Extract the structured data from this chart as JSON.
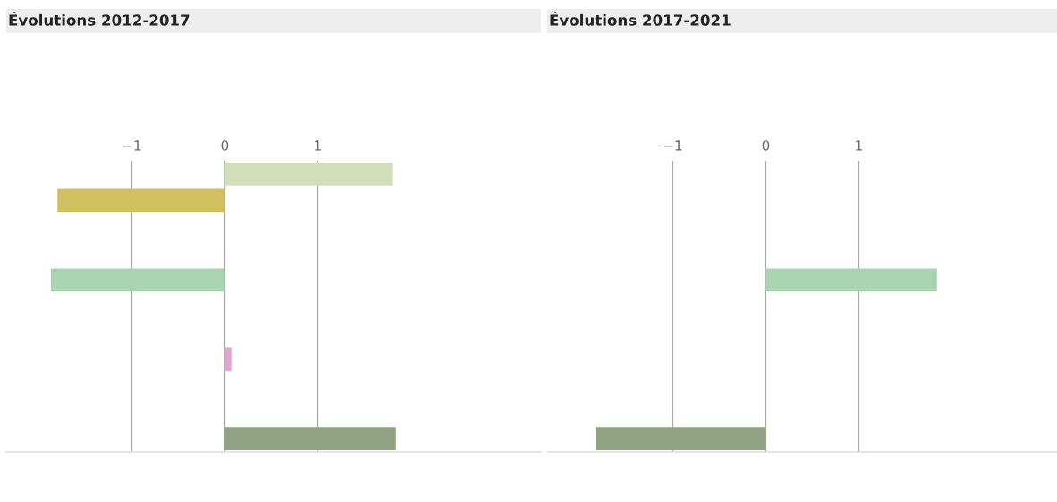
{
  "chart_data": [
    {
      "type": "bar",
      "orientation": "horizontal",
      "title": "Évolutions 2012-2017",
      "categories": [
        null,
        null,
        null,
        null,
        null,
        null,
        null,
        null,
        null,
        null,
        null
      ],
      "values": [
        1.8,
        -1.8,
        0,
        0,
        -1.87,
        0,
        0,
        0.07,
        0,
        0,
        1.84
      ],
      "colors": [
        "#d3dfbb",
        "#cfc25e",
        "#cccccc",
        "#cccccc",
        "#a8d5b0",
        "#cccccc",
        "#f0c8c0",
        "#e0a6d0",
        "#c0d8e8",
        "#cccccc",
        "#91a282"
      ],
      "xlim": [
        -2.35,
        3.4
      ],
      "xticks": [
        {
          "value": -1,
          "label": "−1"
        },
        0,
        1
      ],
      "grid": "x",
      "tick_labels": "x"
    },
    {
      "type": "bar",
      "orientation": "horizontal",
      "title": "Évolutions 2017-2021",
      "categories": [
        null,
        null,
        null,
        null,
        null,
        null,
        null,
        null,
        null,
        null,
        null
      ],
      "values": [
        0,
        0,
        0,
        0,
        1.84,
        0,
        0,
        0,
        0,
        0,
        -1.83
      ],
      "colors": [
        "#d3dfbb",
        "#e8dcb0",
        "#cccccc",
        "#cccccc",
        "#a8d5b0",
        "#cccccc",
        "#f0c8c0",
        "#e0a6d0",
        "#c0d8e8",
        "#cccccc",
        "#91a282"
      ],
      "xlim": [
        -2.35,
        3.13
      ],
      "xticks": [
        {
          "value": -1,
          "label": "−1"
        },
        0,
        1
      ],
      "grid": "x",
      "tick_labels": "x"
    }
  ]
}
